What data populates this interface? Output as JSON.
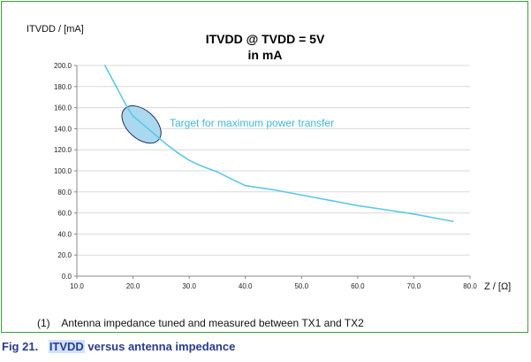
{
  "chart_data": {
    "type": "line",
    "title_line1": "ITVDD @ TVDD = 5V",
    "title_line2": "in mA",
    "ylabel": "ITVDD / [mA]",
    "xlabel": "Z / [Ω]",
    "xlim": [
      10,
      80
    ],
    "ylim": [
      0,
      200
    ],
    "x_ticks": [
      10,
      20,
      30,
      40,
      50,
      60,
      70,
      80
    ],
    "x_tick_labels": [
      "10.0",
      "20.0",
      "30.0",
      "40.0",
      "50.0",
      "60.0",
      "70.0",
      "80.0"
    ],
    "y_ticks": [
      0,
      20,
      40,
      60,
      80,
      100,
      120,
      140,
      160,
      180,
      200
    ],
    "y_tick_labels": [
      "0.0",
      "20.0",
      "40.0",
      "60.0",
      "80.0",
      "100.0",
      "120.0",
      "140.0",
      "160.0",
      "180.0",
      "200.0"
    ],
    "grid": "horizontal",
    "series": [
      {
        "color": "#5bc8e8",
        "x": [
          15,
          17,
          19,
          20,
          22,
          24,
          26,
          28,
          30,
          32,
          35,
          38,
          40,
          45,
          50,
          55,
          60,
          65,
          70,
          74,
          77
        ],
        "y": [
          200,
          180,
          160,
          152,
          143,
          134,
          125,
          117,
          110,
          105,
          99,
          91,
          86,
          82,
          77,
          72,
          67,
          63,
          59,
          55,
          52
        ]
      }
    ],
    "annotation": {
      "text": "Target for maximum  power transfer",
      "ellipse_center": [
        21.5,
        144
      ],
      "ellipse_fill": "#a9d8ef",
      "ellipse_stroke": "#1f2f5a"
    }
  },
  "footnote": {
    "number": "(1)",
    "text": "Antenna impedance tuned and measured between TX1 and TX2"
  },
  "caption": {
    "fig": "Fig 21.",
    "highlight": "ITVDD",
    "rest": " versus antenna impedance"
  },
  "colors": {
    "frame": "#3b9e3b",
    "caption": "#2b3a8f",
    "highlight": "#cfe3ff"
  }
}
